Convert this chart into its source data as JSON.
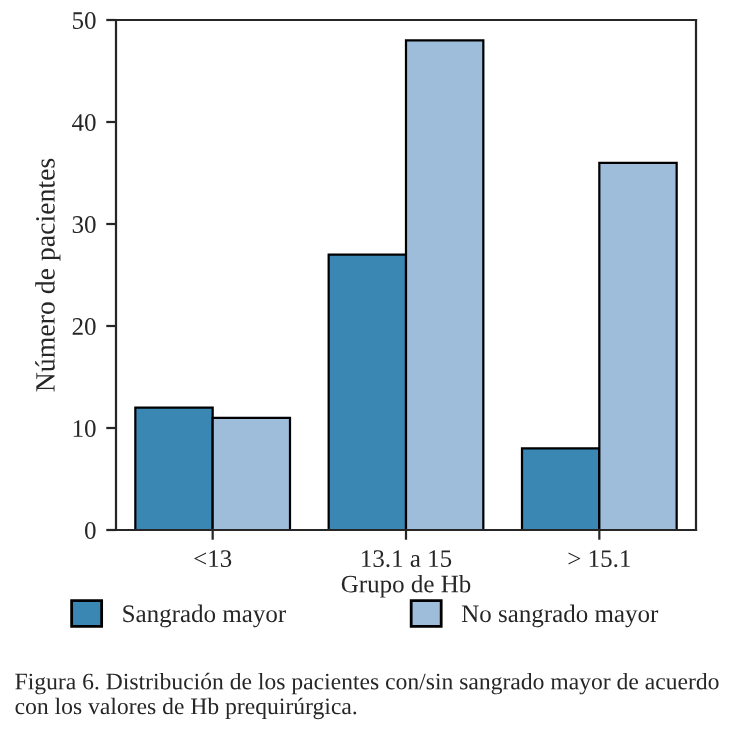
{
  "chart_data": {
    "type": "bar",
    "xlabel": "Grupo de Hb",
    "ylabel": "Número de pacientes",
    "categories": [
      "<13",
      "13.1 a 15",
      "> 15.1"
    ],
    "series": [
      {
        "name": "Sangrado mayor",
        "color": "#3b87b4",
        "values": [
          12,
          27,
          8
        ]
      },
      {
        "name": "No sangrado mayor",
        "color": "#9dbddb",
        "values": [
          11,
          48,
          36
        ]
      }
    ],
    "ylim": [
      0,
      50
    ],
    "yticks": [
      0,
      10,
      20,
      30,
      40,
      50
    ],
    "grid": false,
    "legend": "bottom",
    "annotations": [
      "Figura 6. Distribución de los pacientes con/sin sangrado mayor de acuerdo con los valores de Hb prequirúrgica."
    ]
  }
}
